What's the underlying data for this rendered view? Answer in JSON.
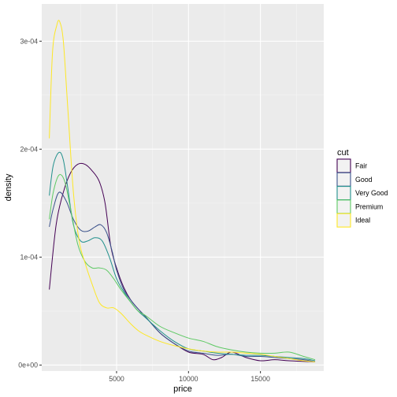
{
  "chart_data": {
    "type": "line",
    "xlabel": "price",
    "ylabel": "density",
    "xlim": [
      -200,
      19400
    ],
    "ylim": [
      -5.5e-06,
      0.0003345
    ],
    "x_ticks": [
      5000,
      10000,
      15000
    ],
    "x_tick_labels": [
      "5000",
      "10000",
      "15000"
    ],
    "y_ticks": [
      0,
      0.0001,
      0.0002,
      0.0003
    ],
    "y_tick_labels": [
      "0e+00",
      "1e-04",
      "2e-04",
      "3e-04"
    ],
    "grid": true,
    "legend": {
      "title": "cut",
      "position": "right"
    },
    "series": [
      {
        "name": "Fair",
        "color": "#440154",
        "points": [
          [
            326,
            7e-05
          ],
          [
            800,
            0.00013
          ],
          [
            1300,
            0.00016
          ],
          [
            1800,
            0.000178
          ],
          [
            2300,
            0.000186
          ],
          [
            2800,
            0.000186
          ],
          [
            3300,
            0.00018
          ],
          [
            3800,
            0.00017
          ],
          [
            4200,
            0.00015
          ],
          [
            4600,
            0.00011
          ],
          [
            5000,
            9e-05
          ],
          [
            5500,
            7.2e-05
          ],
          [
            6000,
            6e-05
          ],
          [
            6500,
            5.2e-05
          ],
          [
            7000,
            4.5e-05
          ],
          [
            8000,
            3e-05
          ],
          [
            9000,
            2e-05
          ],
          [
            10000,
            1.2e-05
          ],
          [
            11000,
            1e-05
          ],
          [
            11700,
            5e-06
          ],
          [
            12300,
            7e-06
          ],
          [
            13000,
            1.2e-05
          ],
          [
            14000,
            7e-06
          ],
          [
            15000,
            4e-06
          ],
          [
            16000,
            5e-06
          ],
          [
            17000,
            4e-06
          ],
          [
            18800,
            3e-06
          ]
        ]
      },
      {
        "name": "Good",
        "color": "#3b528b",
        "points": [
          [
            326,
            0.000128
          ],
          [
            600,
            0.000145
          ],
          [
            1000,
            0.00016
          ],
          [
            1500,
            0.000152
          ],
          [
            2000,
            0.000135
          ],
          [
            2500,
            0.000125
          ],
          [
            3000,
            0.000124
          ],
          [
            3500,
            0.000128
          ],
          [
            3900,
            0.00013
          ],
          [
            4300,
            0.000123
          ],
          [
            4700,
            0.000105
          ],
          [
            5000,
            8.8e-05
          ],
          [
            5500,
            7e-05
          ],
          [
            6000,
            6e-05
          ],
          [
            6500,
            5.2e-05
          ],
          [
            7000,
            4.5e-05
          ],
          [
            8000,
            3e-05
          ],
          [
            9000,
            2e-05
          ],
          [
            10000,
            1.3e-05
          ],
          [
            11000,
            1.1e-05
          ],
          [
            12000,
            9e-06
          ],
          [
            13000,
            1e-05
          ],
          [
            14000,
            8e-06
          ],
          [
            15000,
            8e-06
          ],
          [
            16000,
            7e-06
          ],
          [
            17000,
            6e-06
          ],
          [
            18000,
            5e-06
          ],
          [
            18800,
            3e-06
          ]
        ]
      },
      {
        "name": "Very Good",
        "color": "#21908c",
        "points": [
          [
            326,
            0.000157
          ],
          [
            600,
            0.000185
          ],
          [
            1000,
            0.000197
          ],
          [
            1300,
            0.00019
          ],
          [
            1600,
            0.000165
          ],
          [
            2000,
            0.00013
          ],
          [
            2500,
            0.000115
          ],
          [
            3000,
            0.000115
          ],
          [
            3500,
            0.000118
          ],
          [
            4000,
            0.000115
          ],
          [
            4500,
            0.0001
          ],
          [
            5000,
            8e-05
          ],
          [
            5500,
            6.8e-05
          ],
          [
            6000,
            5.8e-05
          ],
          [
            6500,
            5e-05
          ],
          [
            7000,
            4.4e-05
          ],
          [
            8000,
            3.2e-05
          ],
          [
            9000,
            2.2e-05
          ],
          [
            10000,
            1.5e-05
          ],
          [
            11000,
            1.3e-05
          ],
          [
            12000,
            1.1e-05
          ],
          [
            13000,
            1e-05
          ],
          [
            14000,
            9e-06
          ],
          [
            15000,
            9e-06
          ],
          [
            16000,
            8e-06
          ],
          [
            17000,
            7e-06
          ],
          [
            18000,
            6e-06
          ],
          [
            18800,
            4e-06
          ]
        ]
      },
      {
        "name": "Premium",
        "color": "#5dc963",
        "points": [
          [
            326,
            0.000135
          ],
          [
            600,
            0.00016
          ],
          [
            1000,
            0.000176
          ],
          [
            1400,
            0.00017
          ],
          [
            1800,
            0.000145
          ],
          [
            2300,
            0.000112
          ],
          [
            2800,
            9.6e-05
          ],
          [
            3300,
            9e-05
          ],
          [
            3800,
            9e-05
          ],
          [
            4300,
            8.8e-05
          ],
          [
            4800,
            8e-05
          ],
          [
            5300,
            7e-05
          ],
          [
            6000,
            5.8e-05
          ],
          [
            6500,
            5e-05
          ],
          [
            7000,
            4.6e-05
          ],
          [
            8000,
            3.6e-05
          ],
          [
            9000,
            3e-05
          ],
          [
            10000,
            2.5e-05
          ],
          [
            11000,
            2.2e-05
          ],
          [
            12000,
            1.7e-05
          ],
          [
            13000,
            1.4e-05
          ],
          [
            14000,
            1.2e-05
          ],
          [
            15000,
            1.1e-05
          ],
          [
            16000,
            1.1e-05
          ],
          [
            17000,
            1.2e-05
          ],
          [
            18000,
            8e-06
          ],
          [
            18800,
            5e-06
          ]
        ]
      },
      {
        "name": "Ideal",
        "color": "#fde725",
        "points": [
          [
            326,
            0.00021
          ],
          [
            550,
            0.00029
          ],
          [
            850,
            0.000315
          ],
          [
            1050,
            0.000318
          ],
          [
            1300,
            0.0003
          ],
          [
            1600,
            0.00024
          ],
          [
            2000,
            0.00016
          ],
          [
            2400,
            0.000115
          ],
          [
            2800,
            9.5e-05
          ],
          [
            3300,
            7.5e-05
          ],
          [
            3800,
            5.8e-05
          ],
          [
            4300,
            5.3e-05
          ],
          [
            4800,
            5.3e-05
          ],
          [
            5300,
            4.8e-05
          ],
          [
            6000,
            3.8e-05
          ],
          [
            6500,
            3.2e-05
          ],
          [
            7000,
            2.8e-05
          ],
          [
            8000,
            2.2e-05
          ],
          [
            9000,
            1.8e-05
          ],
          [
            10000,
            1.5e-05
          ],
          [
            11000,
            1.3e-05
          ],
          [
            12000,
            1.2e-05
          ],
          [
            13000,
            1.2e-05
          ],
          [
            14000,
            1.1e-05
          ],
          [
            15000,
            1e-05
          ],
          [
            16000,
            8e-06
          ],
          [
            17000,
            6e-06
          ],
          [
            18000,
            4e-06
          ],
          [
            18800,
            3e-06
          ]
        ]
      }
    ]
  }
}
